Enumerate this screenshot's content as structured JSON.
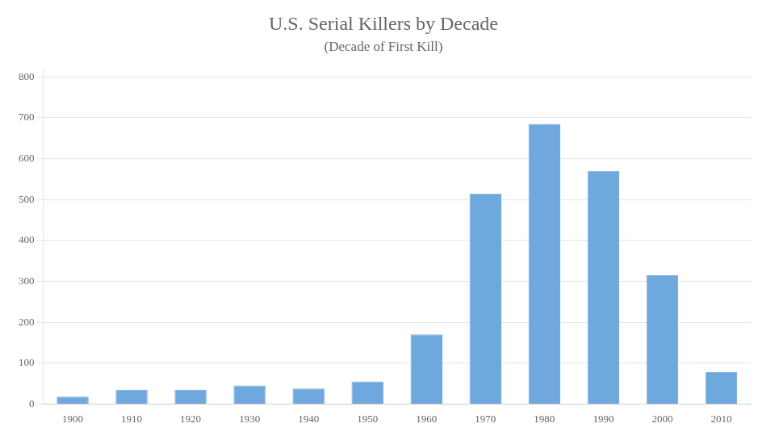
{
  "chart_data": {
    "type": "bar",
    "title": "U.S. Serial Killers by Decade",
    "subtitle": "(Decade of First Kill)",
    "categories": [
      "1900",
      "1910",
      "1920",
      "1930",
      "1940",
      "1950",
      "1960",
      "1970",
      "1980",
      "1990",
      "2000",
      "2010"
    ],
    "values": [
      18,
      35,
      35,
      45,
      38,
      55,
      170,
      515,
      685,
      570,
      315,
      78
    ],
    "color": "#6fa8dc",
    "ylim": [
      0,
      820
    ],
    "yticks": [
      0,
      100,
      200,
      300,
      400,
      500,
      600,
      700,
      800
    ],
    "grid": true
  }
}
